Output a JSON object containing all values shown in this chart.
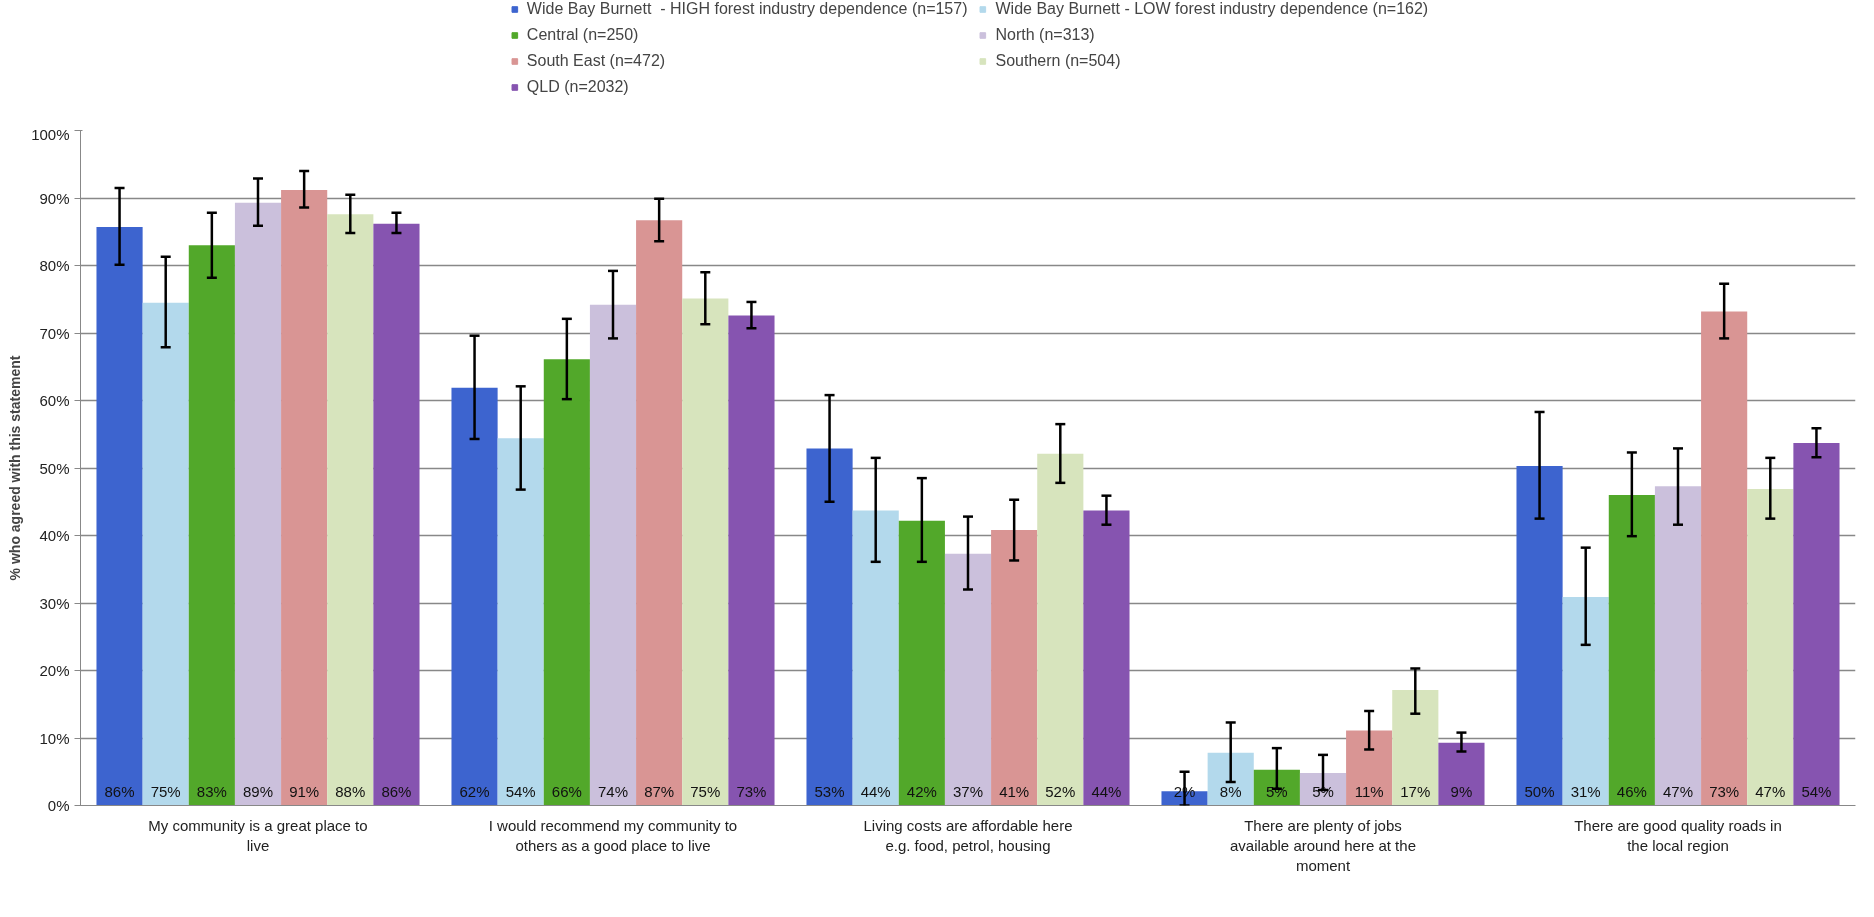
{
  "chart_data": {
    "type": "bar",
    "ylabel": "% who agreed with this statement",
    "categories": [
      "My community is a great place to live",
      "I would recommend my community to others as a good place to live",
      "Living costs are affordable here e.g. food, petrol, housing",
      "There are plenty of jobs available around here at the moment",
      "There are good quality roads in the local region"
    ],
    "ylim": [
      0,
      100
    ],
    "yticks": [
      {
        "value": 0,
        "label": "0%"
      },
      {
        "value": 10,
        "label": "10%"
      },
      {
        "value": 20,
        "label": "20%"
      },
      {
        "value": 30,
        "label": "30%"
      },
      {
        "value": 40,
        "label": "40%"
      },
      {
        "value": 50,
        "label": "50%"
      },
      {
        "value": 60,
        "label": "60%"
      },
      {
        "value": 70,
        "label": "70%"
      },
      {
        "value": 80,
        "label": "80%"
      },
      {
        "value": 90,
        "label": "90%"
      },
      {
        "value": 100,
        "label": "100%"
      }
    ],
    "grid": "y",
    "legend": "top",
    "series": [
      {
        "name": "Wide Bay Burnett  - HIGH forest industry dependence (n=157)",
        "color": "#3d64cf",
        "values": [
          85.7,
          61.9,
          52.9,
          2.1,
          50.3
        ],
        "errors": [
          [
            80.1,
            91.5
          ],
          [
            54.3,
            69.6
          ],
          [
            45.0,
            60.8
          ],
          [
            0,
            5.0
          ],
          [
            42.5,
            58.3
          ]
        ],
        "value_labels": [
          "86%",
          "62%",
          "53%",
          "2%",
          "50%"
        ]
      },
      {
        "name": "Wide Bay Burnett - LOW forest industry dependence (n=162)",
        "color": "#b3d9ec",
        "values": [
          74.5,
          54.4,
          43.7,
          7.8,
          30.9
        ],
        "errors": [
          [
            67.9,
            81.3
          ],
          [
            46.8,
            62.1
          ],
          [
            36.1,
            51.5
          ],
          [
            3.5,
            12.3
          ],
          [
            23.8,
            38.2
          ]
        ],
        "value_labels": [
          "75%",
          "54%",
          "44%",
          "8%",
          "31%"
        ]
      },
      {
        "name": "Central (n=250)",
        "color": "#52a82a",
        "values": [
          83.0,
          66.1,
          42.2,
          5.3,
          46.0
        ],
        "errors": [
          [
            78.2,
            87.8
          ],
          [
            60.2,
            72.1
          ],
          [
            36.1,
            48.5
          ],
          [
            2.5,
            8.5
          ],
          [
            39.9,
            52.3
          ]
        ],
        "value_labels": [
          "83%",
          "66%",
          "42%",
          "5%",
          "46%"
        ]
      },
      {
        "name": "North (n=313)",
        "color": "#cbc0dc",
        "values": [
          89.3,
          74.2,
          37.3,
          4.8,
          47.3
        ],
        "errors": [
          [
            85.9,
            92.9
          ],
          [
            69.2,
            79.2
          ],
          [
            32.0,
            42.8
          ],
          [
            2.3,
            7.5
          ],
          [
            41.6,
            52.9
          ]
        ],
        "value_labels": [
          "89%",
          "74%",
          "37%",
          "5%",
          "47%"
        ]
      },
      {
        "name": "South East (n=472)",
        "color": "#d99594",
        "values": [
          91.2,
          86.7,
          40.8,
          11.1,
          73.2
        ],
        "errors": [
          [
            88.6,
            94.0
          ],
          [
            83.6,
            89.9
          ],
          [
            36.3,
            45.3
          ],
          [
            8.3,
            14.0
          ],
          [
            69.2,
            77.3
          ]
        ],
        "value_labels": [
          "91%",
          "87%",
          "41%",
          "11%",
          "73%"
        ]
      },
      {
        "name": "Southern (n=504)",
        "color": "#d7e4bd",
        "values": [
          87.6,
          75.1,
          52.1,
          17.1,
          46.9
        ],
        "errors": [
          [
            84.8,
            90.5
          ],
          [
            71.3,
            79.0
          ],
          [
            47.8,
            56.5
          ],
          [
            13.6,
            20.3
          ],
          [
            42.5,
            51.5
          ]
        ],
        "value_labels": [
          "88%",
          "75%",
          "52%",
          "17%",
          "47%"
        ]
      },
      {
        "name": "QLD (n=2032)",
        "color": "#8654b0",
        "values": [
          86.2,
          72.6,
          43.7,
          9.3,
          53.7
        ],
        "errors": [
          [
            84.8,
            87.8
          ],
          [
            70.7,
            74.6
          ],
          [
            41.6,
            45.9
          ],
          [
            8.0,
            10.8
          ],
          [
            51.6,
            55.9
          ]
        ],
        "value_labels": [
          "86%",
          "73%",
          "44%",
          "9%",
          "54%"
        ]
      }
    ]
  }
}
